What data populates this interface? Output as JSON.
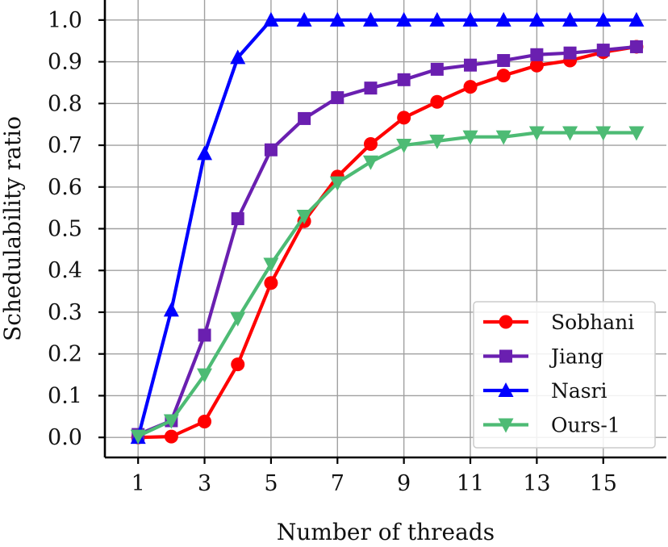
{
  "chart_data": {
    "type": "line",
    "xlabel": "Number of threads",
    "ylabel": "Schedulability ratio",
    "xlim": [
      0.0,
      16.9
    ],
    "ylim": [
      -0.048,
      1.048
    ],
    "xticks": [
      1,
      3,
      5,
      7,
      9,
      11,
      13,
      15
    ],
    "yticks": [
      0.0,
      0.1,
      0.2,
      0.3,
      0.4,
      0.5,
      0.6,
      0.7,
      0.8,
      0.9,
      1.0
    ],
    "grid": true,
    "legend_position": "bottom-right",
    "x": [
      1,
      2,
      3,
      4,
      5,
      6,
      7,
      8,
      9,
      10,
      11,
      12,
      13,
      14,
      15,
      16
    ],
    "series": [
      {
        "name": "Sobhani",
        "color": "#ff0000",
        "marker": "circle",
        "values": [
          0.0,
          0.002,
          0.038,
          0.175,
          0.37,
          0.518,
          0.625,
          0.703,
          0.766,
          0.804,
          0.84,
          0.867,
          0.891,
          0.903,
          0.923,
          0.936
        ]
      },
      {
        "name": "Jiang",
        "color": "#6a1fb0",
        "marker": "square",
        "values": [
          0.007,
          0.04,
          0.245,
          0.524,
          0.689,
          0.764,
          0.814,
          0.837,
          0.857,
          0.882,
          0.892,
          0.903,
          0.917,
          0.921,
          0.928,
          0.936
        ]
      },
      {
        "name": "Nasri",
        "color": "#0000ff",
        "marker": "triangle-up",
        "values": [
          0.0,
          0.305,
          0.68,
          0.91,
          1.0,
          1.0,
          1.0,
          1.0,
          1.0,
          1.0,
          1.0,
          1.0,
          1.0,
          1.0,
          1.0,
          1.0
        ]
      },
      {
        "name": "Ours-1",
        "color": "#4dbb74",
        "marker": "triangle-down",
        "values": [
          0.003,
          0.04,
          0.15,
          0.285,
          0.415,
          0.53,
          0.61,
          0.66,
          0.7,
          0.71,
          0.72,
          0.72,
          0.73,
          0.73,
          0.73,
          0.73
        ]
      }
    ]
  }
}
